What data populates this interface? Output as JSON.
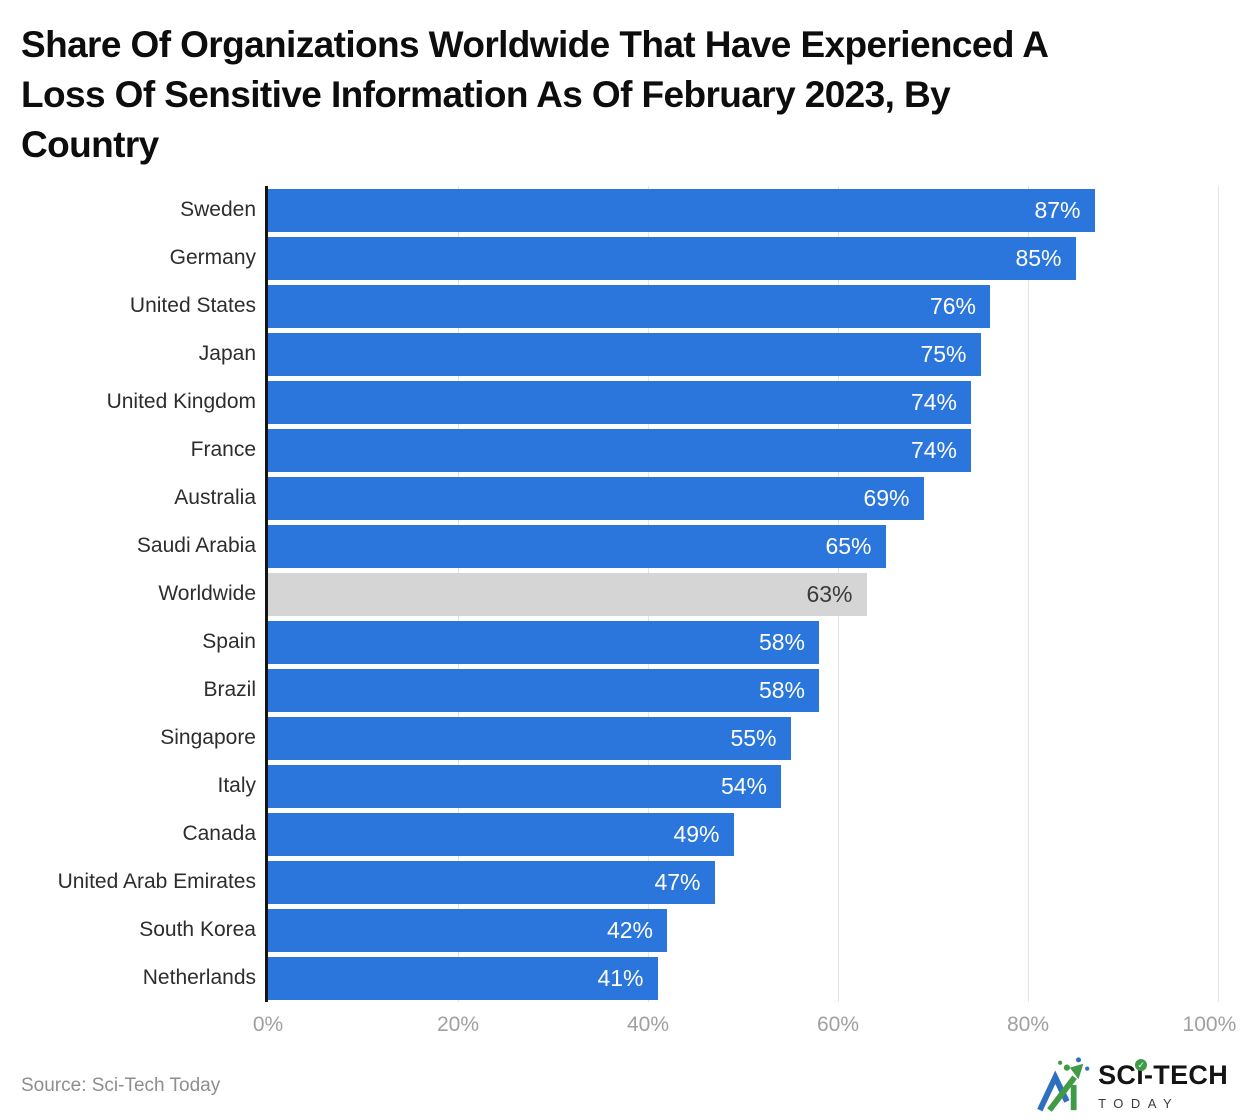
{
  "chart_data": {
    "type": "bar",
    "orientation": "horizontal",
    "title": "Share Of Organizations Worldwide That Have Experienced A Loss Of Sensitive Information As Of February 2023, By Country",
    "title_lines": [
      "Share Of Organizations Worldwide That Have Experienced A",
      "Loss Of Sensitive Information As Of February 2023, By",
      "Country"
    ],
    "categories": [
      "Sweden",
      "Germany",
      "United States",
      "Japan",
      "United Kingdom",
      "France",
      "Australia",
      "Saudi Arabia",
      "Worldwide",
      "Spain",
      "Brazil",
      "Singapore",
      "Italy",
      "Canada",
      "United Arab Emirates",
      "South Korea",
      "Netherlands"
    ],
    "values": [
      87,
      85,
      76,
      75,
      74,
      74,
      69,
      65,
      63,
      58,
      58,
      55,
      54,
      49,
      47,
      42,
      41
    ],
    "value_suffix": "%",
    "xlim": [
      0,
      100
    ],
    "x_ticks": [
      "0%",
      "20%",
      "40%",
      "60%",
      "80%",
      "100%"
    ],
    "grid": "vertical",
    "legend": "none",
    "highlight_category": "Worldwide",
    "colors": {
      "bar": "#2b76dd",
      "highlight_bar": "#d5d5d5",
      "value_label": "#ffffff",
      "highlight_value_label": "#3a3a3a"
    }
  },
  "footer": {
    "source": "Source: Sci-Tech Today",
    "brand": {
      "name": "SCi-TECH",
      "tagline": "TODAY"
    }
  }
}
